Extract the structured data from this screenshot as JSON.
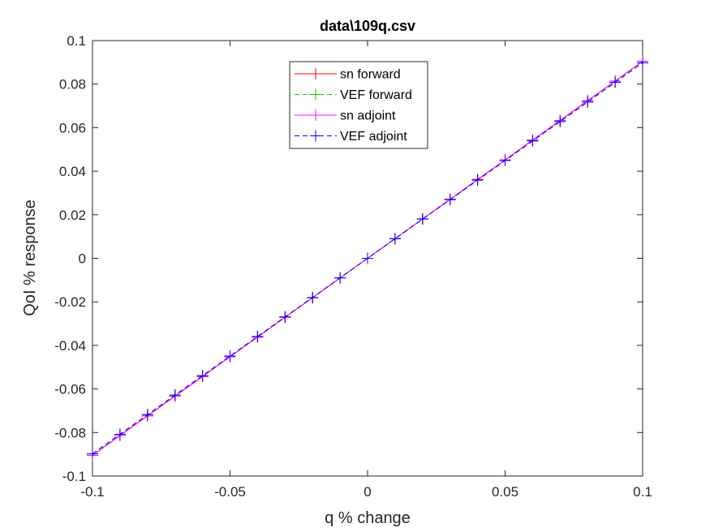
{
  "chart_data": {
    "type": "line",
    "title": "data\\109q.csv",
    "xlabel": "q % change",
    "ylabel": "QoI % response",
    "xlim": [
      -0.1,
      0.1
    ],
    "ylim": [
      -0.1,
      0.1
    ],
    "x_ticks": [
      -0.1,
      -0.05,
      0,
      0.05,
      0.1
    ],
    "x_tick_labels": [
      "-0.1",
      "-0.05",
      "0",
      "0.05",
      "0.1"
    ],
    "y_ticks": [
      -0.1,
      -0.08,
      -0.06,
      -0.04,
      -0.02,
      0,
      0.02,
      0.04,
      0.06,
      0.08,
      0.1
    ],
    "y_tick_labels": [
      "-0.1",
      "-0.08",
      "-0.06",
      "-0.04",
      "-0.02",
      "0",
      "0.02",
      "0.04",
      "0.06",
      "0.08",
      "0.1"
    ],
    "grid": false,
    "legend_position": "top-center",
    "x": [
      -0.1,
      -0.09,
      -0.08,
      -0.07,
      -0.06,
      -0.05,
      -0.04,
      -0.03,
      -0.02,
      -0.01,
      0,
      0.01,
      0.02,
      0.03,
      0.04,
      0.05,
      0.06,
      0.07,
      0.08,
      0.09,
      0.1
    ],
    "series": [
      {
        "name": "sn forward",
        "color": "#ff0000",
        "dash": "solid",
        "values": [
          -0.0905,
          -0.0814,
          -0.0724,
          -0.0633,
          -0.0543,
          -0.0452,
          -0.0362,
          -0.0271,
          -0.0181,
          -0.009,
          0.0,
          0.009,
          0.0181,
          0.0271,
          0.0362,
          0.0452,
          0.0543,
          0.0633,
          0.0724,
          0.0814,
          0.0905
        ]
      },
      {
        "name": "VEF forward",
        "color": "#00cc00",
        "dash": "dashed",
        "values": [
          -0.0898,
          -0.0808,
          -0.0718,
          -0.0628,
          -0.0539,
          -0.0449,
          -0.0359,
          -0.0269,
          -0.018,
          -0.009,
          0.0,
          0.009,
          0.018,
          0.0269,
          0.0359,
          0.0449,
          0.0539,
          0.0628,
          0.0718,
          0.0808,
          0.0898
        ]
      },
      {
        "name": "sn adjoint",
        "color": "#ff00ff",
        "dash": "solid",
        "values": [
          -0.0905,
          -0.0814,
          -0.0724,
          -0.0633,
          -0.0543,
          -0.0452,
          -0.0362,
          -0.0271,
          -0.0181,
          -0.009,
          0.0,
          0.009,
          0.0181,
          0.0271,
          0.0362,
          0.0452,
          0.0543,
          0.0633,
          0.0724,
          0.0814,
          0.0905
        ]
      },
      {
        "name": "VEF adjoint",
        "color": "#0000ff",
        "dash": "dashed",
        "values": [
          -0.0898,
          -0.0808,
          -0.0718,
          -0.0628,
          -0.0539,
          -0.0449,
          -0.0359,
          -0.0269,
          -0.018,
          -0.009,
          0.0,
          0.009,
          0.018,
          0.0269,
          0.0359,
          0.0449,
          0.0539,
          0.0628,
          0.0718,
          0.0808,
          0.0898
        ]
      }
    ]
  }
}
